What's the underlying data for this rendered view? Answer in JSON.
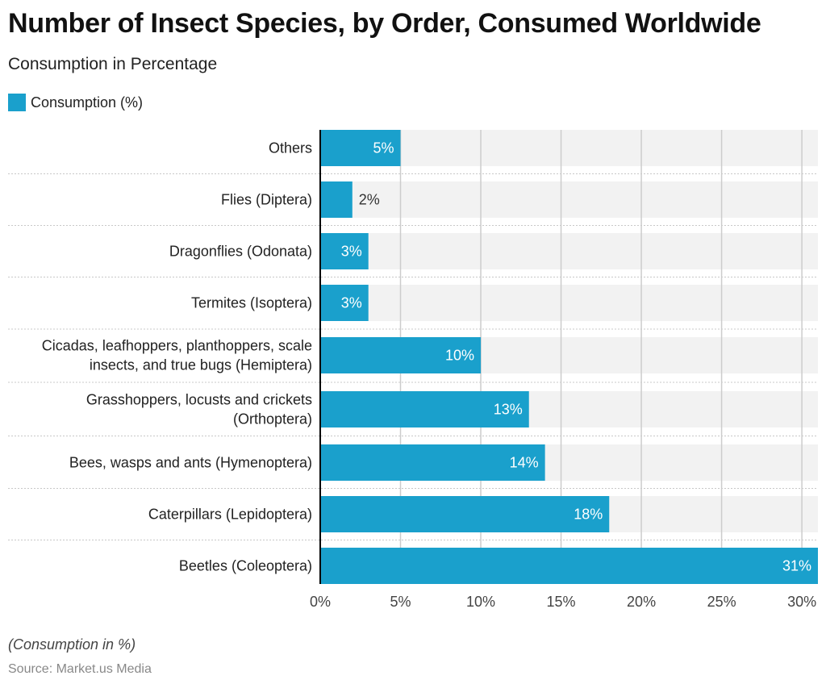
{
  "chart_data": {
    "type": "bar",
    "orientation": "horizontal",
    "title": "Number of Insect Species, by Order, Consumed Worldwide",
    "subtitle": "Consumption in Percentage",
    "categories": [
      "Others",
      "Flies (Diptera)",
      "Dragonflies (Odonata)",
      "Termites (Isoptera)",
      "Cicadas, leafhoppers, planthoppers, scale insects, and true bugs (Hemiptera)",
      "Grasshoppers, locusts and crickets (Orthoptera)",
      "Bees, wasps and ants (Hymenoptera)",
      "Caterpillars (Lepidoptera)",
      "Beetles (Coleoptera)"
    ],
    "category_lines": [
      [
        "Others"
      ],
      [
        "Flies (Diptera)"
      ],
      [
        "Dragonflies (Odonata)"
      ],
      [
        "Termites (Isoptera)"
      ],
      [
        "Cicadas, leafhoppers, planthoppers, scale",
        "insects, and true bugs (Hemiptera)"
      ],
      [
        "Grasshoppers, locusts and crickets",
        "(Orthoptera)"
      ],
      [
        "Bees, wasps and ants (Hymenoptera)"
      ],
      [
        "Caterpillars (Lepidoptera)"
      ],
      [
        "Beetles (Coleoptera)"
      ]
    ],
    "series": [
      {
        "name": "Consumption (%)",
        "values": [
          5,
          2,
          3,
          3,
          10,
          13,
          14,
          18,
          31
        ],
        "color": "#1aa0cc"
      }
    ],
    "data_labels": [
      "5%",
      "2%",
      "3%",
      "3%",
      "10%",
      "13%",
      "14%",
      "18%",
      "31%"
    ],
    "xlim": [
      0,
      31
    ],
    "xticks": [
      0,
      5,
      10,
      15,
      20,
      25,
      30
    ],
    "xtick_labels": [
      "0%",
      "5%",
      "10%",
      "15%",
      "20%",
      "25%",
      "30%"
    ],
    "grid": true,
    "legend_placement": "top-left",
    "note": "(Consumption in %)",
    "source": "Source: Market.us Media"
  }
}
